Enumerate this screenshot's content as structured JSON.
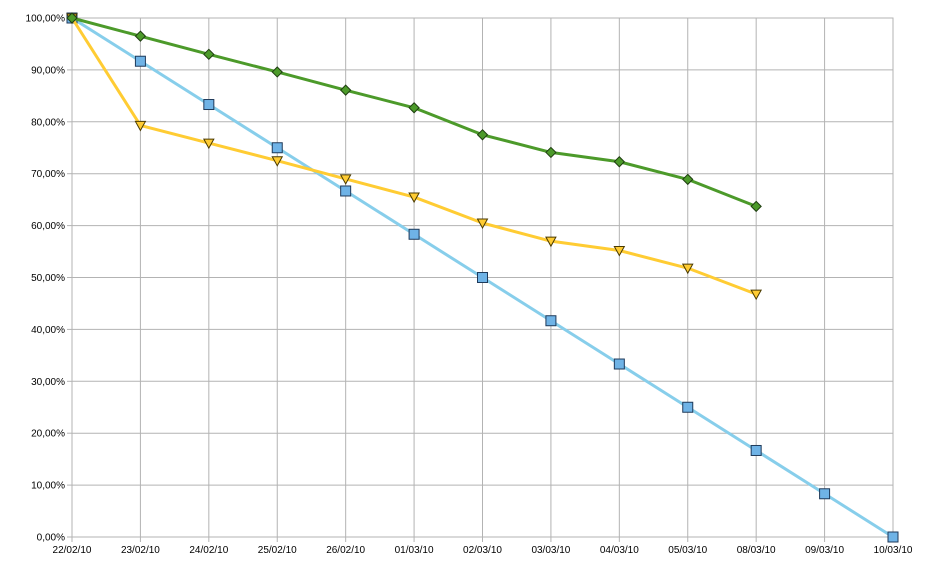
{
  "chart_data": {
    "type": "line",
    "title": "",
    "xlabel": "",
    "ylabel": "",
    "categories": [
      "22/02/10",
      "23/02/10",
      "24/02/10",
      "25/02/10",
      "26/02/10",
      "01/03/10",
      "02/03/10",
      "03/03/10",
      "04/03/10",
      "05/03/10",
      "08/03/10",
      "09/03/10",
      "10/03/10"
    ],
    "y_ticks": [
      "0,00%",
      "10,00%",
      "20,00%",
      "30,00%",
      "40,00%",
      "50,00%",
      "60,00%",
      "70,00%",
      "80,00%",
      "90,00%",
      "100,00%"
    ],
    "ylim": [
      0,
      100
    ],
    "grid": true,
    "legend": "none",
    "series": [
      {
        "color": "#87ceeb",
        "marker": "square",
        "marker_fill": "#6fb3e6",
        "values": [
          100,
          91.67,
          83.33,
          75.0,
          66.67,
          58.33,
          50.0,
          41.67,
          33.33,
          25.0,
          16.67,
          8.33,
          0.0
        ]
      },
      {
        "color": "#ffcc33",
        "marker": "triangle-down",
        "marker_fill": "#ffcc33",
        "values": [
          100,
          79.3,
          75.9,
          72.5,
          69.0,
          65.5,
          60.5,
          57.0,
          55.2,
          51.8,
          46.8,
          null,
          null
        ]
      },
      {
        "color": "#4c9a2a",
        "marker": "diamond",
        "marker_fill": "#4c9a2a",
        "values": [
          100,
          96.5,
          93.0,
          89.6,
          86.1,
          82.7,
          77.5,
          74.1,
          72.3,
          68.9,
          63.7,
          null,
          null
        ]
      }
    ]
  }
}
